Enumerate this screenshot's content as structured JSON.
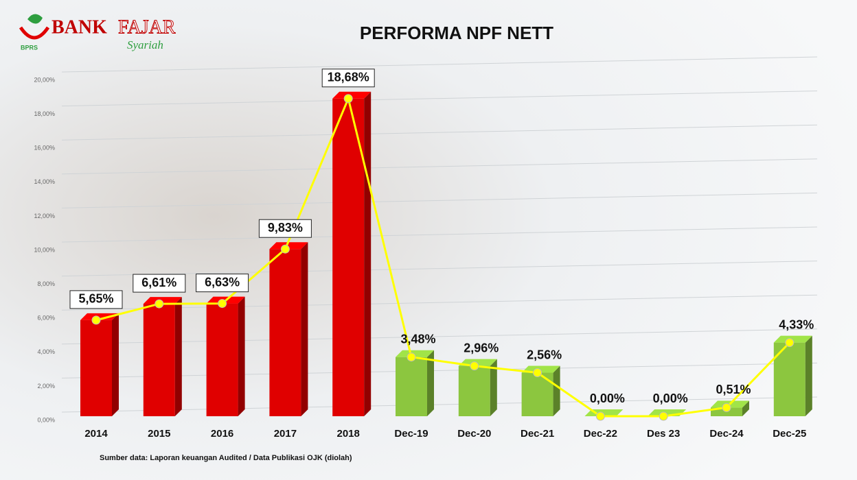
{
  "logo": {
    "bank": "BANK",
    "name": "FAJAR",
    "tagline": "Syariah",
    "sub": "BPRS"
  },
  "chart_data": {
    "type": "bar",
    "title": "PERFORMA NPF NETT",
    "categories": [
      "2014",
      "2015",
      "2016",
      "2017",
      "2018",
      "Dec-19",
      "Dec-20",
      "Dec-21",
      "Dec-22",
      "Des 23",
      "Dec-24",
      "Dec-25"
    ],
    "values": [
      5.65,
      6.61,
      6.63,
      9.83,
      18.68,
      3.48,
      2.96,
      2.56,
      0,
      0,
      0.51,
      4.33
    ],
    "value_labels": [
      "5,65%",
      "6,61%",
      "6,63%",
      "9,83%",
      "18,68%",
      "3,48%",
      "2,96%",
      "2,56%",
      "0,00%",
      "0,00%",
      "0,51%",
      "4,33%"
    ],
    "colors": [
      "#e00000",
      "#e00000",
      "#e00000",
      "#e00000",
      "#e00000",
      "#8cc63f",
      "#8cc63f",
      "#8cc63f",
      "#8cc63f",
      "#8cc63f",
      "#8cc63f",
      "#8cc63f"
    ],
    "line_color": "#ffff00",
    "ylim": [
      0,
      20
    ],
    "yticks": [
      {
        "value": 0,
        "label": "0,00%"
      },
      {
        "value": 2,
        "label": "2,00%"
      },
      {
        "value": 4,
        "label": "4,00%"
      },
      {
        "value": 6,
        "label": "6,00%"
      },
      {
        "value": 8,
        "label": "8,00%"
      },
      {
        "value": 10,
        "label": "10,00%"
      },
      {
        "value": 12,
        "label": "12,00%"
      },
      {
        "value": 14,
        "label": "14,00%"
      },
      {
        "value": 16,
        "label": "16,00%"
      },
      {
        "value": 18,
        "label": "18,00%"
      },
      {
        "value": 20,
        "label": "20,00%"
      }
    ],
    "grid": true,
    "source": "Sumber data: Laporan keuangan Audited / Data Publikasi OJK (diolah)"
  }
}
